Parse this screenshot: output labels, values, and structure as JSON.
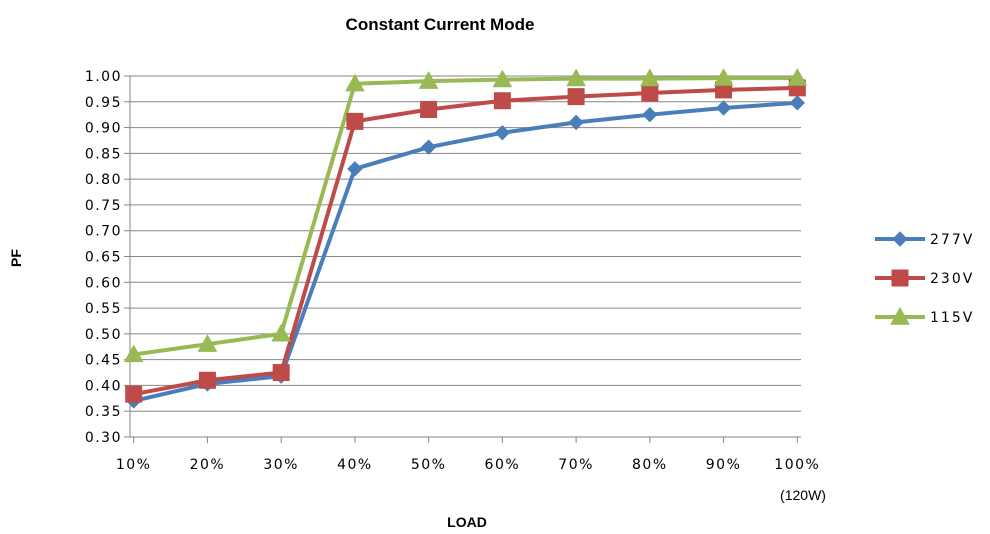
{
  "chart_data": {
    "type": "line",
    "title": "Constant Current Mode",
    "xlabel": "LOAD",
    "ylabel": "PF",
    "x_note": "(120W)",
    "categories": [
      "10%",
      "20%",
      "30%",
      "40%",
      "50%",
      "60%",
      "70%",
      "80%",
      "90%",
      "100%"
    ],
    "y_ticks": [
      "0.30",
      "0.35",
      "0.40",
      "0.45",
      "0.50",
      "0.55",
      "0.60",
      "0.65",
      "0.70",
      "0.75",
      "0.80",
      "0.85",
      "0.90",
      "0.95",
      "1.00"
    ],
    "ylim": [
      0.3,
      1.0
    ],
    "grid": true,
    "legend_position": "right",
    "series": [
      {
        "name": "277V",
        "color": "#4a7ebb",
        "marker": "diamond",
        "values": [
          0.37,
          0.403,
          0.418,
          0.82,
          0.862,
          0.89,
          0.91,
          0.925,
          0.938,
          0.948
        ]
      },
      {
        "name": "230V",
        "color": "#be4b48",
        "marker": "square",
        "values": [
          0.383,
          0.41,
          0.425,
          0.912,
          0.935,
          0.952,
          0.96,
          0.967,
          0.973,
          0.977
        ]
      },
      {
        "name": "115V",
        "color": "#98b954",
        "marker": "triangle",
        "values": [
          0.46,
          0.48,
          0.5,
          0.985,
          0.99,
          0.993,
          0.995,
          0.995,
          0.996,
          0.996
        ]
      }
    ]
  }
}
